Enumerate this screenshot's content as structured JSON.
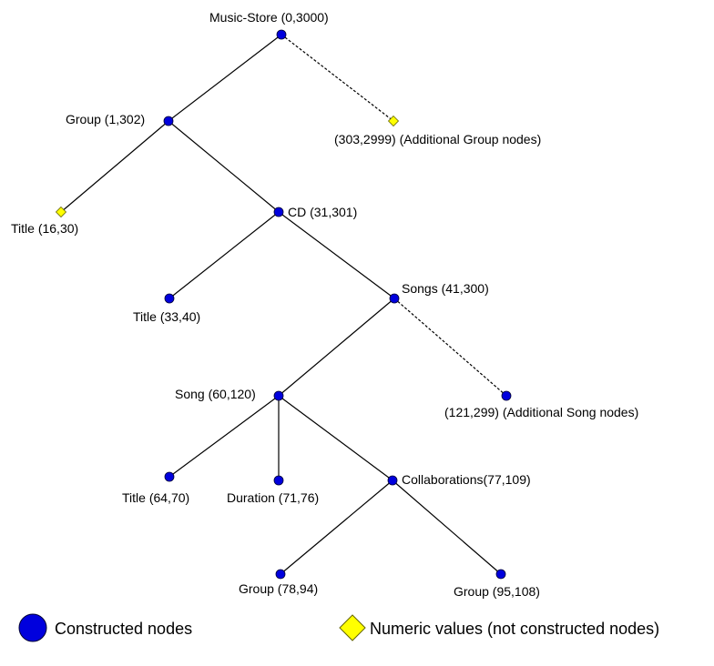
{
  "colors": {
    "constructed_fill": "#0000dd",
    "constructed_stroke": "#000033",
    "numeric_fill": "#ffff00",
    "numeric_stroke": "#666600",
    "edge": "#000000"
  },
  "nodes": {
    "music_store": {
      "label": "Music-Store (0,3000)",
      "kind": "constructed"
    },
    "group1": {
      "label": "Group (1,302)",
      "kind": "constructed"
    },
    "add_group": {
      "label": "(303,2999) (Additional Group nodes)",
      "kind": "numeric"
    },
    "title_16": {
      "label": "Title (16,30)",
      "kind": "numeric"
    },
    "cd": {
      "label": "CD (31,301)",
      "kind": "constructed"
    },
    "title_33": {
      "label": "Title (33,40)",
      "kind": "constructed"
    },
    "songs": {
      "label": "Songs (41,300)",
      "kind": "constructed"
    },
    "song": {
      "label": "Song (60,120)",
      "kind": "constructed"
    },
    "add_song": {
      "label": "(121,299) (Additional Song nodes)",
      "kind": "constructed"
    },
    "title_64": {
      "label": "Title (64,70)",
      "kind": "constructed"
    },
    "duration": {
      "label": "Duration (71,76)",
      "kind": "constructed"
    },
    "collab": {
      "label": "Collaborations(77,109)",
      "kind": "constructed"
    },
    "group_78": {
      "label": "Group (78,94)",
      "kind": "constructed"
    },
    "group_95": {
      "label": "Group (95,108)",
      "kind": "constructed"
    }
  },
  "edges": [
    {
      "from": "music_store",
      "to": "group1",
      "style": "solid"
    },
    {
      "from": "music_store",
      "to": "add_group",
      "style": "dashed"
    },
    {
      "from": "group1",
      "to": "title_16",
      "style": "solid"
    },
    {
      "from": "group1",
      "to": "cd",
      "style": "solid"
    },
    {
      "from": "cd",
      "to": "title_33",
      "style": "solid"
    },
    {
      "from": "cd",
      "to": "songs",
      "style": "solid"
    },
    {
      "from": "songs",
      "to": "song",
      "style": "solid"
    },
    {
      "from": "songs",
      "to": "add_song",
      "style": "dashed"
    },
    {
      "from": "song",
      "to": "title_64",
      "style": "solid"
    },
    {
      "from": "song",
      "to": "duration",
      "style": "solid"
    },
    {
      "from": "song",
      "to": "collab",
      "style": "solid"
    },
    {
      "from": "collab",
      "to": "group_78",
      "style": "solid"
    },
    {
      "from": "collab",
      "to": "group_95",
      "style": "solid"
    }
  ],
  "legend": {
    "constructed_label": "Constructed nodes",
    "numeric_label": "Numeric values (not constructed nodes)"
  }
}
